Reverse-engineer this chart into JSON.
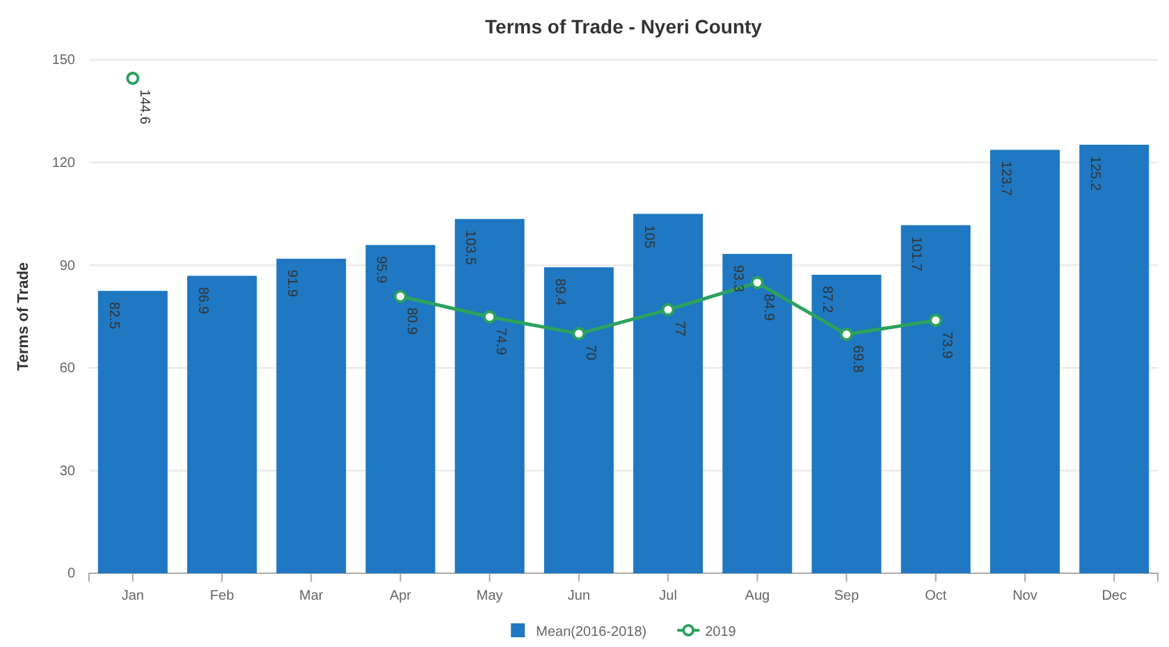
{
  "chart_data": {
    "type": "bar",
    "title": "Terms of Trade - Nyeri County",
    "ylabel": "Terms of Trade",
    "categories": [
      "Jan",
      "Feb",
      "Mar",
      "Apr",
      "May",
      "Jun",
      "Jul",
      "Aug",
      "Sep",
      "Oct",
      "Nov",
      "Dec"
    ],
    "series": [
      {
        "name": "Mean(2016-2018)",
        "color": "#1f78c1",
        "values": [
          82.5,
          86.9,
          91.9,
          95.9,
          103.5,
          89.4,
          105,
          93.3,
          87.2,
          101.7,
          123.7,
          125.2
        ]
      },
      {
        "name": "2019",
        "type": "line",
        "color": "#2ca25f",
        "marker": "circle",
        "values": [
          144.6,
          null,
          null,
          80.9,
          74.9,
          70,
          77,
          84.9,
          69.8,
          73.9,
          null,
          null
        ]
      }
    ],
    "ylim": [
      0,
      150
    ],
    "yticks": [
      0,
      30,
      60,
      90,
      120,
      150
    ],
    "grid": "y",
    "legend": "bottom",
    "data_labels": true
  }
}
